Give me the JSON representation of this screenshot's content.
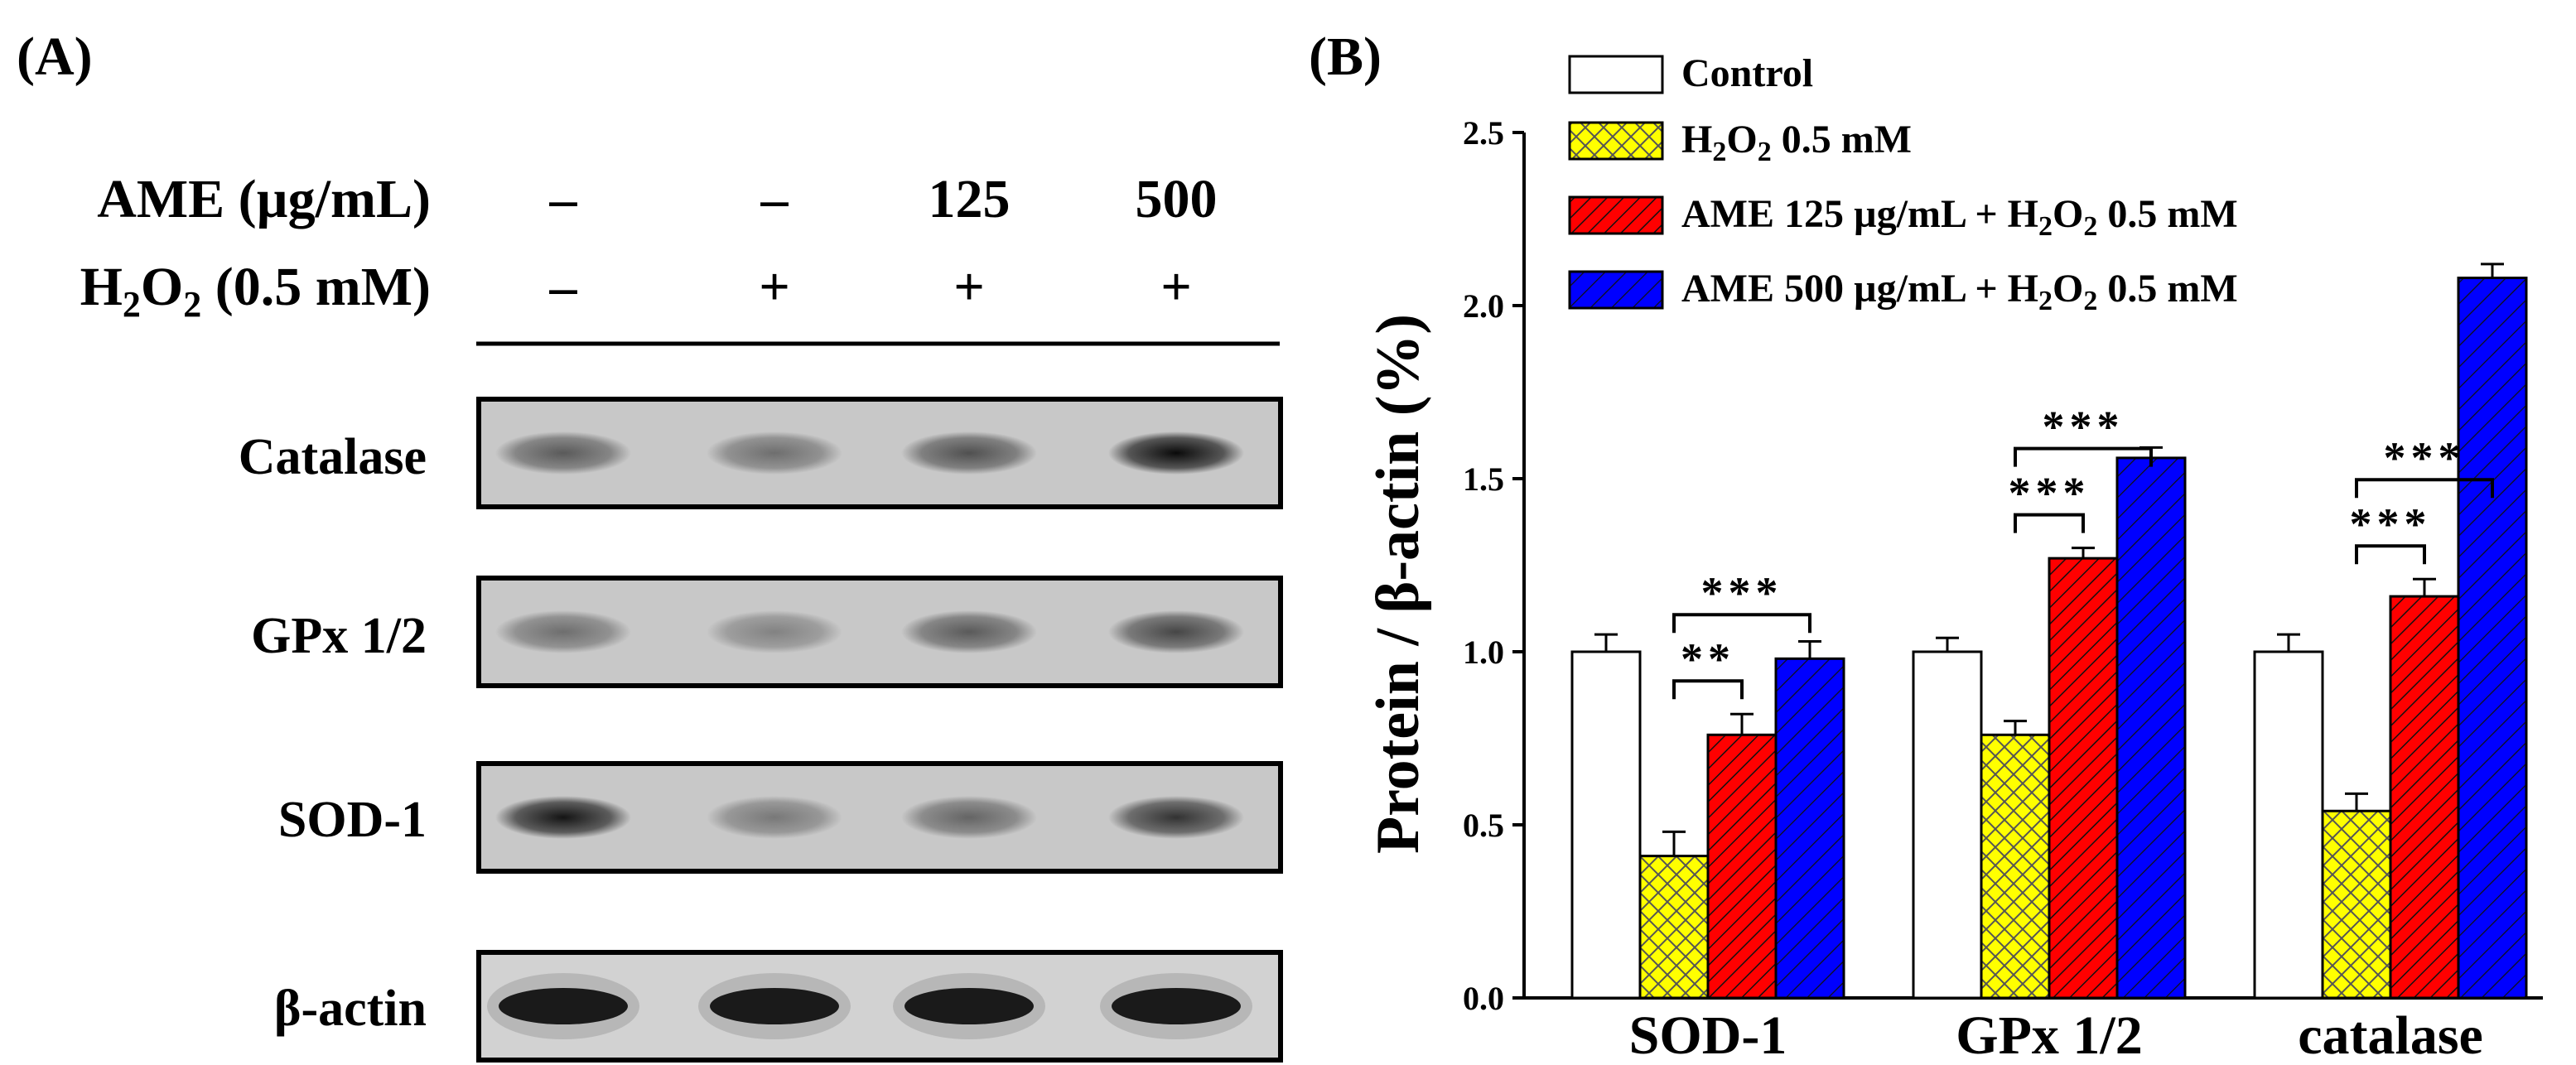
{
  "panel_a": {
    "label": "(A)",
    "row_labels": {
      "ame": "AME (µg/mL)",
      "h2o2_prefix": "H",
      "h2o2_sub1": "2",
      "h2o2_mid": "O",
      "h2o2_sub2": "2",
      "h2o2_suffix": " (0.5 mM)"
    },
    "lanes": [
      {
        "ame": "–",
        "h2o2": "–"
      },
      {
        "ame": "–",
        "h2o2": "+"
      },
      {
        "ame": "125",
        "h2o2": "+"
      },
      {
        "ame": "500",
        "h2o2": "+"
      }
    ],
    "blots": [
      {
        "label": "Catalase",
        "intensity": [
          0.55,
          0.45,
          0.6,
          0.95
        ]
      },
      {
        "label": "GPx 1/2",
        "intensity": [
          0.45,
          0.35,
          0.55,
          0.65
        ]
      },
      {
        "label": "SOD-1",
        "intensity": [
          0.9,
          0.4,
          0.5,
          0.75
        ]
      },
      {
        "label": "β-actin",
        "intensity": [
          1.0,
          1.0,
          1.0,
          1.0
        ]
      }
    ]
  },
  "panel_b": {
    "label": "(B)",
    "legend": [
      {
        "text": "Control"
      },
      {
        "text_prefix": "H",
        "sub1": "2",
        "mid": "O",
        "sub2": "2",
        "suffix": " 0.5 mM"
      },
      {
        "text": "AME 125 µg/mL + H",
        "sub1": "2",
        "mid": "O",
        "sub2": "2",
        "suffix": " 0.5 mM"
      },
      {
        "text": "AME 500 µg/mL + H",
        "sub1": "2",
        "mid": "O",
        "sub2": "2",
        "suffix": " 0.5 mM"
      }
    ]
  },
  "chart_data": {
    "type": "bar",
    "title": "",
    "xlabel": "",
    "ylabel": "Protein / β-actin (%)",
    "ylim": [
      0,
      2.5
    ],
    "yticks": [
      "0.0",
      "0.5",
      "1.0",
      "1.5",
      "2.0",
      "2.5"
    ],
    "categories": [
      "SOD-1",
      "GPx 1/2",
      "catalase"
    ],
    "series": [
      {
        "name": "Control",
        "values": [
          1.0,
          1.0,
          1.0
        ],
        "errors": [
          0.05,
          0.04,
          0.05
        ],
        "color": "#ffffff",
        "pattern": "none"
      },
      {
        "name": "H2O2 0.5 mM",
        "values": [
          0.41,
          0.76,
          0.54
        ],
        "errors": [
          0.07,
          0.04,
          0.05
        ],
        "color": "#ffff00",
        "pattern": "crosshatch"
      },
      {
        "name": "AME 125 µg/mL + H2O2 0.5 mM",
        "values": [
          0.76,
          1.27,
          1.16
        ],
        "errors": [
          0.06,
          0.03,
          0.05
        ],
        "color": "#ff0000",
        "pattern": "hatch"
      },
      {
        "name": "AME 500 µg/mL + H2O2 0.5 mM",
        "values": [
          0.98,
          1.56,
          2.08
        ],
        "errors": [
          0.05,
          0.03,
          0.04
        ],
        "color": "#0000ff",
        "pattern": "hatch"
      }
    ],
    "significance": [
      {
        "category": 0,
        "from_series": 1,
        "to_series": 2,
        "label": "**"
      },
      {
        "category": 0,
        "from_series": 1,
        "to_series": 3,
        "label": "***"
      },
      {
        "category": 1,
        "from_series": 1,
        "to_series": 2,
        "label": "***"
      },
      {
        "category": 1,
        "from_series": 1,
        "to_series": 3,
        "label": "***"
      },
      {
        "category": 2,
        "from_series": 1,
        "to_series": 2,
        "label": "***"
      },
      {
        "category": 2,
        "from_series": 1,
        "to_series": 3,
        "label": "***"
      }
    ]
  }
}
